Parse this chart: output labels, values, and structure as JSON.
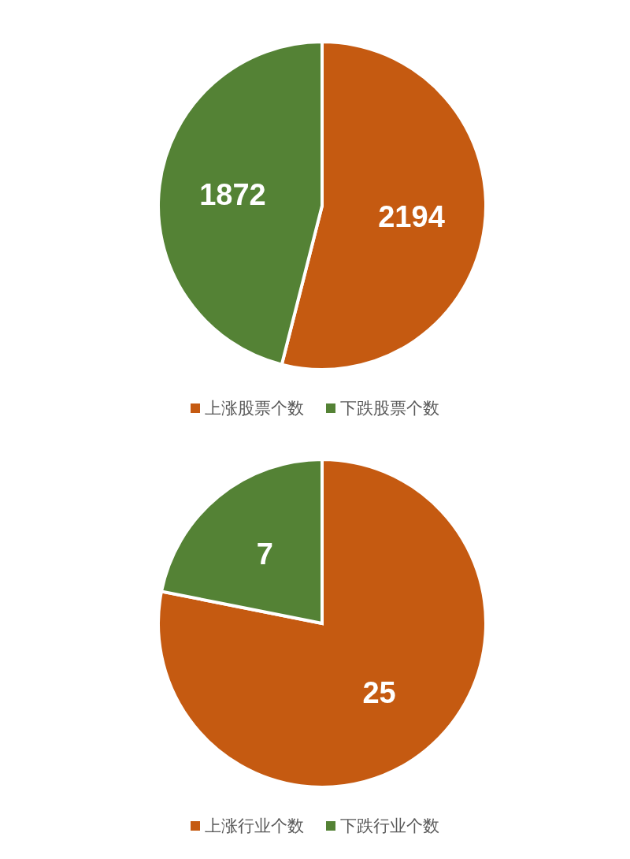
{
  "chart_data": [
    {
      "type": "pie",
      "categories": [
        "上涨股票个数",
        "下跌股票个数"
      ],
      "values": [
        2194,
        1872
      ],
      "colors": [
        "#c55a11",
        "#548235"
      ],
      "data_labels": true,
      "legend": "bottom"
    },
    {
      "type": "pie",
      "categories": [
        "上涨行业个数",
        "下跌行业个数"
      ],
      "values": [
        25,
        7
      ],
      "colors": [
        "#c55a11",
        "#548235"
      ],
      "data_labels": true,
      "legend": "bottom"
    }
  ]
}
